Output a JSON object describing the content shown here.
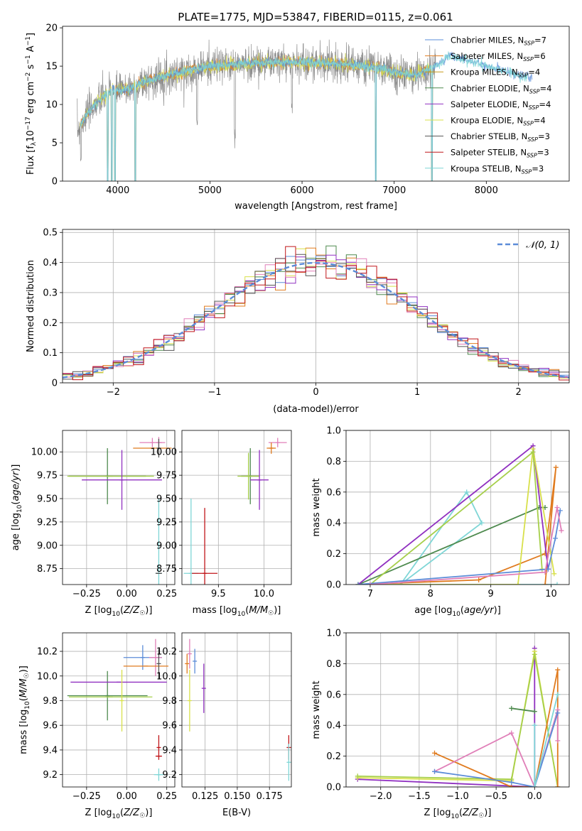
{
  "figure": {
    "title": "PLATE=1775, MJD=53847, FIBERID=0115, z=0.061"
  },
  "colors": {
    "chabrier_miles": "#5b8cd8",
    "salpeter_miles": "#e07b1f",
    "kroupa_miles": "#c79a1a",
    "chabrier_elodie": "#4e8a4e",
    "salpeter_elodie": "#9030c0",
    "kroupa_elodie": "#d8e04a",
    "chabrier_stelib": "#555555",
    "salpeter_stelib": "#c0161a",
    "kroupa_stelib": "#7fd6d6",
    "pink": "#e07fb8",
    "lightgreen": "#a6cf4a",
    "gauss": "#5b8cd8",
    "gray_spec": "#808080"
  },
  "chart_data": [
    {
      "id": "spectrum",
      "type": "line",
      "xlabel": "wavelength [Angstrom, rest frame]",
      "ylabel": "Flux [f_λ10^-17 erg cm^-2 s^-1 A^-1]",
      "xlim": [
        3400,
        8900
      ],
      "ylim": [
        0,
        20.2
      ],
      "xticks": [
        4000,
        5000,
        6000,
        7000,
        8000
      ],
      "yticks": [
        0,
        5,
        10,
        15,
        20
      ],
      "legend_position": "upper-right",
      "legend": [
        {
          "label": "Chabrier MILES, N",
          "sub": "SSP",
          "suffix": "=7",
          "color": "#5b8cd8"
        },
        {
          "label": "Salpeter MILES, N",
          "sub": "SSP",
          "suffix": "=6",
          "color": "#e07b1f"
        },
        {
          "label": "Kroupa MILES, N",
          "sub": "SSP",
          "suffix": "=4",
          "color": "#c79a1a"
        },
        {
          "label": "Chabrier ELODIE, N",
          "sub": "SSP",
          "suffix": "=4",
          "color": "#4e8a4e"
        },
        {
          "label": "Salpeter ELODIE, N",
          "sub": "SSP",
          "suffix": "=4",
          "color": "#9030c0"
        },
        {
          "label": "Kroupa ELODIE, N",
          "sub": "SSP",
          "suffix": "=4",
          "color": "#d8e04a"
        },
        {
          "label": "Chabrier STELIB, N",
          "sub": "SSP",
          "suffix": "=3",
          "color": "#555555"
        },
        {
          "label": "Salpeter STELIB, N",
          "sub": "SSP",
          "suffix": "=3",
          "color": "#c0161a"
        },
        {
          "label": "Kroupa STELIB, N",
          "sub": "SSP",
          "suffix": "=3",
          "color": "#7fd6d6"
        }
      ],
      "continuum": {
        "x": [
          3560,
          3650,
          3750,
          3850,
          3950,
          4050,
          4150,
          4300,
          4450,
          4600,
          4800,
          5000,
          5300,
          5600,
          5900,
          6200,
          6500,
          6800,
          7000,
          7200,
          7400,
          7600,
          7800,
          8000,
          8200,
          8400,
          8500
        ],
        "y": [
          6.5,
          8.5,
          10.0,
          11.0,
          12.0,
          11.8,
          12.2,
          13.0,
          13.5,
          14.0,
          14.5,
          15.0,
          15.2,
          15.5,
          15.5,
          15.4,
          15.2,
          14.9,
          14.2,
          13.8,
          14.6,
          16.3,
          15.8,
          15.0,
          14.4,
          13.7,
          13.4
        ]
      },
      "absorption_dips": [
        {
          "x": 3600,
          "depth": 0.6
        },
        {
          "x": 3890,
          "depth": 1.0
        },
        {
          "x": 3935,
          "depth": 1.0
        },
        {
          "x": 3970,
          "depth": 1.0
        },
        {
          "x": 4190,
          "depth": 1.0
        },
        {
          "x": 4860,
          "depth": 0.5
        },
        {
          "x": 5270,
          "depth": 0.6
        },
        {
          "x": 5890,
          "depth": 0.4
        },
        {
          "x": 6800,
          "depth": 1.0
        },
        {
          "x": 7410,
          "depth": 1.0
        }
      ]
    },
    {
      "id": "residuals",
      "type": "histogram",
      "xlabel": "(data-model)/error",
      "ylabel": "Normed distribution",
      "xlim": [
        -2.5,
        2.5
      ],
      "ylim": [
        0,
        0.51
      ],
      "xticks": [
        -2,
        -1,
        0,
        1,
        2
      ],
      "yticks": [
        0,
        0.1,
        0.2,
        0.3,
        0.4,
        0.5
      ],
      "grid": true,
      "bin_width": 0.1,
      "legend_position": "upper-right",
      "gaussian_label": "𝒩(0, 1)",
      "series_colors": [
        "#5b8cd8",
        "#e07b1f",
        "#4e8a4e",
        "#9030c0",
        "#d8e04a",
        "#e07fb8",
        "#555555",
        "#c0161a"
      ],
      "bin_centers": [
        -2.45,
        -2.35,
        -2.25,
        -2.15,
        -2.05,
        -1.95,
        -1.85,
        -1.75,
        -1.65,
        -1.55,
        -1.45,
        -1.35,
        -1.25,
        -1.15,
        -1.05,
        -0.95,
        -0.85,
        -0.75,
        -0.65,
        -0.55,
        -0.45,
        -0.35,
        -0.25,
        -0.15,
        -0.05,
        0.05,
        0.15,
        0.25,
        0.35,
        0.45,
        0.55,
        0.65,
        0.75,
        0.85,
        0.95,
        1.05,
        1.15,
        1.25,
        1.35,
        1.45,
        1.55,
        1.65,
        1.75,
        1.85,
        1.95,
        2.05,
        2.15,
        2.25,
        2.35,
        2.45
      ]
    },
    {
      "id": "age-Z",
      "type": "errorbar",
      "xlabel": "Z [log10(Z/Z☉)]",
      "ylabel": "age  [log10(age/yr)]",
      "xlim": [
        -0.4,
        0.3
      ],
      "ylim": [
        8.58,
        10.23
      ],
      "xticks": [
        -0.25,
        0.0,
        0.25
      ],
      "xticklabels": [
        "−0.25",
        "0.00",
        "0.25"
      ],
      "yticks": [
        8.75,
        9.0,
        9.25,
        9.5,
        9.75,
        10.0
      ],
      "yticklabels": [
        "8.75",
        "9.00",
        "9.25",
        "9.50",
        "9.75",
        "10.00"
      ],
      "points": [
        {
          "x": 0.16,
          "y": 10.1,
          "xerr": 0.08,
          "yerr": 0.05,
          "color": "#e07fb8"
        },
        {
          "x": 0.2,
          "y": 10.1,
          "xerr": 0.02,
          "yerr": 0.06,
          "color": "#e07fb8"
        },
        {
          "x": 0.16,
          "y": 10.04,
          "xerr": 0.12,
          "yerr": 0.0,
          "color": "#e07b1f"
        },
        {
          "x": 0.2,
          "y": 10.04,
          "xerr": 0.0,
          "yerr": 0.1,
          "color": "#555555"
        },
        {
          "x": -0.12,
          "y": 9.74,
          "xerr": 0.24,
          "yerr": 0.3,
          "color": "#4e8a4e"
        },
        {
          "x": -0.1,
          "y": 9.74,
          "xerr": 0.27,
          "yerr": 0.0,
          "color": "#a6cf4a"
        },
        {
          "x": -0.03,
          "y": 9.7,
          "xerr": 0.25,
          "yerr": 0.32,
          "color": "#9030c0"
        },
        {
          "x": 0.2,
          "y": 8.7,
          "xerr": 0.02,
          "yerr": 0.8,
          "color": "#7fd6d6"
        },
        {
          "x": 0.2,
          "y": 8.7,
          "xerr": 0.02,
          "yerr": 0.0,
          "color": "#555555"
        }
      ]
    },
    {
      "id": "age-mass",
      "type": "errorbar",
      "xlabel": "mass [log10(M/M☉)]",
      "ylabel": "",
      "xlim": [
        9.1,
        10.3
      ],
      "ylim": [
        8.58,
        10.23
      ],
      "xticks": [
        9.5,
        10.0
      ],
      "xticklabels": [
        "9.5",
        "10.0"
      ],
      "yticks": [
        8.75,
        9.0,
        9.25,
        9.5,
        9.75,
        10.0
      ],
      "yticklabels": [
        "8.75",
        "9.00",
        "9.25",
        "9.50",
        "9.75",
        "10.00"
      ],
      "points": [
        {
          "x": 10.15,
          "y": 10.1,
          "xerr": 0.1,
          "yerr": 0.05,
          "color": "#e07fb8"
        },
        {
          "x": 10.08,
          "y": 10.04,
          "xerr": 0.05,
          "yerr": 0.06,
          "color": "#e07b1f"
        },
        {
          "x": 9.85,
          "y": 9.74,
          "xerr": 0.1,
          "yerr": 0.3,
          "color": "#4e8a4e"
        },
        {
          "x": 9.83,
          "y": 9.74,
          "xerr": 0.12,
          "yerr": 0.25,
          "color": "#a6cf4a"
        },
        {
          "x": 9.95,
          "y": 9.7,
          "xerr": 0.1,
          "yerr": 0.32,
          "color": "#9030c0"
        },
        {
          "x": 9.2,
          "y": 8.7,
          "xerr": 0.08,
          "yerr": 0.8,
          "color": "#7fd6d6"
        },
        {
          "x": 9.35,
          "y": 8.7,
          "xerr": 0.14,
          "yerr": 0.7,
          "color": "#c0161a"
        }
      ]
    },
    {
      "id": "weight-age",
      "type": "line",
      "xlabel": "age  [log10(age/yr)]",
      "ylabel": "mass weight",
      "xlim": [
        6.6,
        10.3
      ],
      "ylim": [
        0,
        1.0
      ],
      "xticks": [
        7,
        8,
        9,
        10
      ],
      "xticklabels": [
        "7",
        "8",
        "9",
        "10"
      ],
      "yticks": [
        0,
        0.2,
        0.4,
        0.6,
        0.8,
        1.0
      ],
      "yticklabels": [
        "0.0",
        "0.2",
        "0.4",
        "0.6",
        "0.8",
        "1.0"
      ],
      "series": [
        {
          "color": "#7fd6d6",
          "points": [
            [
              6.8,
              0.0
            ],
            [
              7.5,
              0.0
            ],
            [
              8.6,
              0.6
            ],
            [
              8.85,
              0.4
            ],
            [
              7.5,
              0.0
            ],
            [
              10.1,
              0.0
            ]
          ]
        },
        {
          "color": "#4e8a4e",
          "points": [
            [
              6.8,
              0.0
            ],
            [
              9.8,
              0.5
            ],
            [
              9.9,
              0.5
            ]
          ]
        },
        {
          "color": "#e07b1f",
          "points": [
            [
              6.8,
              0.0
            ],
            [
              8.8,
              0.03
            ],
            [
              9.9,
              0.2
            ],
            [
              10.08,
              0.76
            ],
            [
              9.9,
              0.0
            ]
          ]
        },
        {
          "color": "#9030c0",
          "points": [
            [
              6.8,
              0.0
            ],
            [
              9.7,
              0.9
            ],
            [
              9.95,
              0.1
            ]
          ]
        },
        {
          "color": "#d8e04a",
          "points": [
            [
              6.8,
              0.0
            ],
            [
              9.45,
              0.0
            ],
            [
              9.7,
              0.88
            ],
            [
              10.05,
              0.07
            ]
          ]
        },
        {
          "color": "#a6cf4a",
          "points": [
            [
              7.0,
              0.0
            ],
            [
              9.7,
              0.86
            ],
            [
              9.85,
              0.1
            ]
          ]
        },
        {
          "color": "#5b8cd8",
          "points": [
            [
              6.8,
              0.0
            ],
            [
              9.95,
              0.1
            ],
            [
              10.07,
              0.3
            ],
            [
              10.15,
              0.48
            ]
          ]
        },
        {
          "color": "#e07fb8",
          "points": [
            [
              7.0,
              0.0
            ],
            [
              9.9,
              0.08
            ],
            [
              10.1,
              0.5
            ],
            [
              10.17,
              0.35
            ]
          ]
        }
      ]
    },
    {
      "id": "mass-Z",
      "type": "errorbar",
      "xlabel": "Z [log10(Z/Z☉)]",
      "ylabel": "mass [log10(M/M☉)]",
      "xlim": [
        -0.4,
        0.3
      ],
      "ylim": [
        9.1,
        10.35
      ],
      "xticks": [
        -0.25,
        0.0,
        0.25
      ],
      "xticklabels": [
        "−0.25",
        "0.00",
        "0.25"
      ],
      "yticks": [
        9.2,
        9.4,
        9.6,
        9.8,
        10.0,
        10.2
      ],
      "yticklabels": [
        "9.2",
        "9.4",
        "9.6",
        "9.8",
        "10.0",
        "10.2"
      ],
      "points": [
        {
          "x": 0.1,
          "y": 10.15,
          "xerr": 0.12,
          "yerr": 0.1,
          "color": "#5b8cd8"
        },
        {
          "x": 0.18,
          "y": 10.15,
          "xerr": 0.04,
          "yerr": 0.15,
          "color": "#e07fb8"
        },
        {
          "x": 0.12,
          "y": 10.08,
          "xerr": 0.14,
          "yerr": 0.0,
          "color": "#e07b1f"
        },
        {
          "x": 0.2,
          "y": 10.1,
          "xerr": 0.0,
          "yerr": 0.12,
          "color": "#555555"
        },
        {
          "x": -0.12,
          "y": 9.84,
          "xerr": 0.25,
          "yerr": 0.2,
          "color": "#4e8a4e"
        },
        {
          "x": -0.1,
          "y": 9.83,
          "xerr": 0.26,
          "yerr": 0.0,
          "color": "#a6cf4a"
        },
        {
          "x": -0.05,
          "y": 9.95,
          "xerr": 0.3,
          "yerr": 0.0,
          "color": "#9030c0"
        },
        {
          "x": -0.03,
          "y": 9.8,
          "xerr": 0.0,
          "yerr": 0.25,
          "color": "#d8e04a"
        },
        {
          "x": 0.2,
          "y": 9.42,
          "xerr": 0.0,
          "yerr": 0.1,
          "color": "#c0161a"
        },
        {
          "x": 0.2,
          "y": 9.35,
          "xerr": 0.02,
          "yerr": 0.0,
          "color": "#c0161a"
        },
        {
          "x": 0.2,
          "y": 9.2,
          "xerr": 0.03,
          "yerr": 0.05,
          "color": "#7fd6d6"
        }
      ]
    },
    {
      "id": "mass-EBV",
      "type": "errorbar",
      "xlabel": "E(B-V)",
      "ylabel": "",
      "xlim": [
        0.107,
        0.192
      ],
      "ylim": [
        9.1,
        10.35
      ],
      "xticks": [
        0.125,
        0.15,
        0.175
      ],
      "xticklabels": [
        "0.125",
        "0.150",
        "0.175"
      ],
      "yticks": [
        9.2,
        9.4,
        9.6,
        9.8,
        10.0,
        10.2
      ],
      "yticklabels": [
        "9.2",
        "9.4",
        "9.6",
        "9.8",
        "10.0",
        "10.2"
      ],
      "points": [
        {
          "x": 0.111,
          "y": 10.1,
          "xerr": 0.0,
          "yerr": 0.08,
          "color": "#e07b1f"
        },
        {
          "x": 0.113,
          "y": 10.18,
          "xerr": 0.0,
          "yerr": 0.12,
          "color": "#e07fb8"
        },
        {
          "x": 0.117,
          "y": 10.12,
          "xerr": 0.0,
          "yerr": 0.1,
          "color": "#5b8cd8"
        },
        {
          "x": 0.113,
          "y": 9.8,
          "xerr": 0.0,
          "yerr": 0.25,
          "color": "#d8e04a"
        },
        {
          "x": 0.124,
          "y": 9.9,
          "xerr": 0.0,
          "yerr": 0.2,
          "color": "#9030c0"
        },
        {
          "x": 0.19,
          "y": 9.42,
          "xerr": 0.0,
          "yerr": 0.1,
          "color": "#c0161a"
        },
        {
          "x": 0.19,
          "y": 9.3,
          "xerr": 0.0,
          "yerr": 0.15,
          "color": "#7fd6d6"
        }
      ]
    },
    {
      "id": "weight-Z",
      "type": "line",
      "xlabel": "Z [log10(Z/Z☉)]",
      "ylabel": "mass weight",
      "xlim": [
        -2.45,
        0.45
      ],
      "ylim": [
        0,
        1.0
      ],
      "xticks": [
        -2.0,
        -1.5,
        -1.0,
        -0.5,
        0.0
      ],
      "xticklabels": [
        "−2.0",
        "−1.5",
        "−1.0",
        "−0.5",
        "0.0"
      ],
      "yticks": [
        0,
        0.2,
        0.4,
        0.6,
        0.8,
        1.0
      ],
      "yticklabels": [
        "0.0",
        "0.2",
        "0.4",
        "0.6",
        "0.8",
        "1.0"
      ],
      "series": [
        {
          "color": "#9030c0",
          "points": [
            [
              -2.3,
              0.05
            ],
            [
              0.0,
              0.0
            ],
            [
              0.0,
              0.9
            ]
          ]
        },
        {
          "color": "#d8e04a",
          "points": [
            [
              -2.3,
              0.06
            ],
            [
              -0.3,
              0.04
            ],
            [
              0.0,
              0.88
            ],
            [
              0.3,
              0.0
            ]
          ]
        },
        {
          "color": "#a6cf4a",
          "points": [
            [
              -2.3,
              0.07
            ],
            [
              -0.3,
              0.05
            ],
            [
              0.0,
              0.86
            ],
            [
              0.3,
              0.0
            ]
          ]
        },
        {
          "color": "#e07b1f",
          "points": [
            [
              -1.3,
              0.22
            ],
            [
              -0.3,
              0.0
            ],
            [
              0.0,
              0.0
            ],
            [
              0.3,
              0.76
            ],
            [
              0.3,
              0.0
            ]
          ]
        },
        {
          "color": "#e07fb8",
          "points": [
            [
              -1.3,
              0.1
            ],
            [
              -0.3,
              0.35
            ],
            [
              0.0,
              0.0
            ],
            [
              0.3,
              0.5
            ],
            [
              0.3,
              0.3
            ]
          ]
        },
        {
          "color": "#5b8cd8",
          "points": [
            [
              -1.3,
              0.1
            ],
            [
              -0.3,
              0.03
            ],
            [
              0.0,
              0.0
            ],
            [
              0.3,
              0.48
            ]
          ]
        },
        {
          "color": "#4e8a4e",
          "points": [
            [
              -0.3,
              0.51
            ],
            [
              0.0,
              0.49
            ]
          ]
        },
        {
          "color": "#7fd6d6",
          "points": [
            [
              0.0,
              0.4
            ],
            [
              0.0,
              0.0
            ],
            [
              0.3,
              0.6
            ]
          ]
        }
      ]
    }
  ]
}
